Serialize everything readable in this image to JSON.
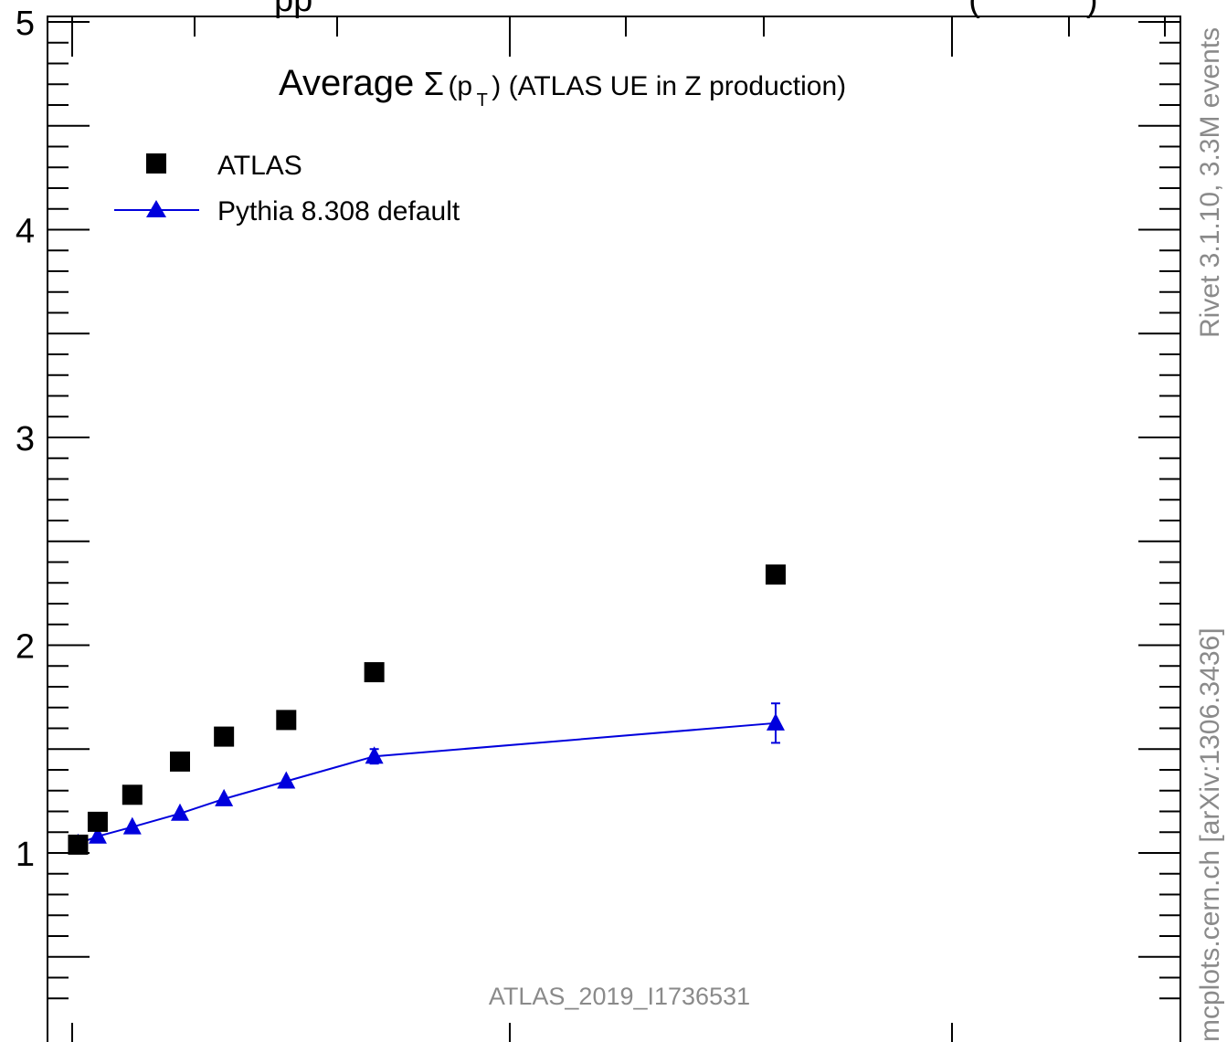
{
  "chart_data": {
    "type": "scatter",
    "title": "Average Σ(p_T) (ATLAS UE in Z production)",
    "title_parts": {
      "prefix": "Average",
      "symbol": "Σ",
      "open": "(p",
      "subscript": "T",
      "rest": ") (ATLAS UE in Z production)"
    },
    "xlabel": "",
    "ylabel": "",
    "ylim": [
      0.2,
      5.05
    ],
    "y_ticks": [
      1,
      2,
      3,
      4,
      5
    ],
    "y_tick_labels": [
      "1",
      "2",
      "3",
      "4",
      "5"
    ],
    "grid": false,
    "legend_position": "top-left",
    "series": [
      {
        "name": "ATLAS",
        "marker": "square",
        "color": "#000000",
        "points": [
          {
            "x": 0.015,
            "y": 1.04
          },
          {
            "x": 0.065,
            "y": 1.15
          },
          {
            "x": 0.14,
            "y": 1.28
          },
          {
            "x": 0.24,
            "y": 1.44
          },
          {
            "x": 0.345,
            "y": 1.56
          },
          {
            "x": 0.49,
            "y": 1.64
          },
          {
            "x": 0.79,
            "y": 1.87
          },
          {
            "x": 1.74,
            "y": 2.34
          }
        ]
      },
      {
        "name": "Pythia 8.308 default",
        "marker": "triangle",
        "line": true,
        "color": "#0000dd",
        "points": [
          {
            "x": 0.015,
            "y": 1.045,
            "err": 0.004
          },
          {
            "x": 0.065,
            "y": 1.08,
            "err": 0.004
          },
          {
            "x": 0.14,
            "y": 1.125,
            "err": 0.005
          },
          {
            "x": 0.24,
            "y": 1.19,
            "err": 0.007
          },
          {
            "x": 0.345,
            "y": 1.26,
            "err": 0.01
          },
          {
            "x": 0.49,
            "y": 1.345,
            "err": 0.014
          },
          {
            "x": 0.79,
            "y": 1.465,
            "err": 0.035
          },
          {
            "x": 1.74,
            "y": 1.625,
            "err": 0.095
          }
        ]
      }
    ],
    "analysis_label": "ATLAS_2019_I1736531",
    "side_label_top": "Rivet 3.1.10,  3.3M events",
    "side_label_bottom": "mcplots.cern.ch [arXiv:1306.3436]",
    "top_title_cutoff": "pp                                                                    (           )"
  }
}
